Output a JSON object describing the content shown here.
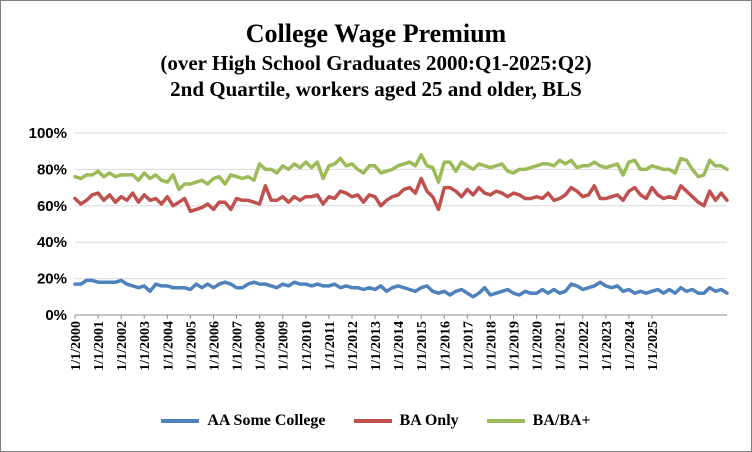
{
  "chart_data": {
    "type": "line",
    "title": "College Wage Premium",
    "subtitle_1": "(over High School Graduates 2000:Q1-2025:Q2)",
    "subtitle_2": "2nd Quartile, workers aged 25 and older, BLS",
    "xlabel": "",
    "ylabel": "",
    "ylim": [
      0,
      100
    ],
    "yticks": [
      "0%",
      "20%",
      "40%",
      "60%",
      "80%",
      "100%"
    ],
    "grid": true,
    "legend_position": "bottom",
    "x_start": "2000:Q1",
    "x_end": "2025:Q2",
    "xticks": [
      "1/1/2000",
      "1/1/2001",
      "1/1/2002",
      "1/1/2003",
      "1/1/2004",
      "1/1/2005",
      "1/1/2006",
      "1/1/2007",
      "1/1/2008",
      "1/1/2009",
      "1/1/2010",
      "1/1/2011",
      "1/1/2012",
      "1/1/2013",
      "1/1/2014",
      "1/1/2015",
      "1/1/2016",
      "1/1/2017",
      "1/1/2018",
      "1/1/2019",
      "1/1/2020",
      "1/1/2021",
      "1/1/2022",
      "1/1/2023",
      "1/1/2024",
      "1/1/2025"
    ],
    "series": [
      {
        "name": "AA Some College",
        "color": "#4f81bd",
        "values": [
          17,
          17,
          19,
          19,
          18,
          18,
          18,
          18,
          19,
          17,
          16,
          15,
          16,
          13,
          17,
          16,
          16,
          15,
          15,
          15,
          14,
          17,
          15,
          17,
          15,
          17,
          18,
          17,
          15,
          15,
          17,
          18,
          17,
          17,
          16,
          15,
          17,
          16,
          18,
          17,
          17,
          16,
          17,
          16,
          16,
          17,
          15,
          16,
          15,
          15,
          14,
          15,
          14,
          16,
          13,
          15,
          16,
          15,
          14,
          13,
          15,
          16,
          13,
          12,
          13,
          11,
          13,
          14,
          12,
          10,
          12,
          15,
          11,
          12,
          13,
          14,
          12,
          11,
          13,
          12,
          12,
          14,
          12,
          14,
          12,
          13,
          17,
          16,
          14,
          15,
          16,
          18,
          16,
          15,
          16,
          13,
          14,
          12,
          13,
          12,
          13,
          14,
          12,
          14,
          12,
          15,
          13,
          14,
          12,
          12,
          15,
          13,
          14,
          12
        ]
      },
      {
        "name": "BA Only",
        "color": "#c0504d",
        "values": [
          64,
          61,
          63,
          66,
          67,
          63,
          66,
          62,
          65,
          63,
          67,
          62,
          66,
          63,
          64,
          61,
          65,
          60,
          62,
          64,
          57,
          58,
          59,
          61,
          58,
          62,
          62,
          58,
          64,
          63,
          63,
          62,
          61,
          71,
          63,
          63,
          65,
          62,
          65,
          63,
          65,
          65,
          66,
          61,
          65,
          64,
          68,
          67,
          65,
          66,
          62,
          66,
          65,
          60,
          63,
          65,
          66,
          69,
          70,
          67,
          75,
          68,
          65,
          58,
          70,
          70,
          68,
          65,
          69,
          66,
          70,
          67,
          66,
          68,
          67,
          65,
          67,
          66,
          64,
          64,
          65,
          64,
          67,
          63,
          64,
          66,
          70,
          68,
          65,
          66,
          71,
          64,
          64,
          65,
          66,
          63,
          68,
          70,
          66,
          64,
          70,
          66,
          64,
          65,
          64,
          71,
          68,
          65,
          62,
          60,
          68,
          63,
          67,
          63
        ]
      },
      {
        "name": "BA/BA+",
        "color": "#9bbb59",
        "values": [
          76,
          75,
          77,
          77,
          79,
          76,
          78,
          76,
          77,
          77,
          77,
          74,
          78,
          75,
          77,
          74,
          73,
          77,
          69,
          72,
          72,
          73,
          74,
          72,
          75,
          76,
          72,
          77,
          76,
          75,
          76,
          74,
          83,
          80,
          80,
          78,
          82,
          80,
          83,
          81,
          84,
          81,
          84,
          75,
          82,
          83,
          86,
          82,
          83,
          80,
          78,
          82,
          82,
          78,
          79,
          80,
          82,
          83,
          84,
          82,
          88,
          82,
          81,
          73,
          84,
          84,
          79,
          84,
          82,
          80,
          83,
          82,
          81,
          82,
          83,
          79,
          78,
          80,
          80,
          81,
          82,
          83,
          83,
          82,
          85,
          83,
          85,
          81,
          82,
          82,
          84,
          82,
          81,
          82,
          83,
          77,
          84,
          85,
          80,
          80,
          82,
          81,
          80,
          80,
          78,
          86,
          85,
          80,
          76,
          77,
          85,
          82,
          82,
          80
        ]
      }
    ]
  },
  "legend": {
    "items": [
      "AA Some College",
      "BA Only",
      "BA/BA+"
    ]
  }
}
